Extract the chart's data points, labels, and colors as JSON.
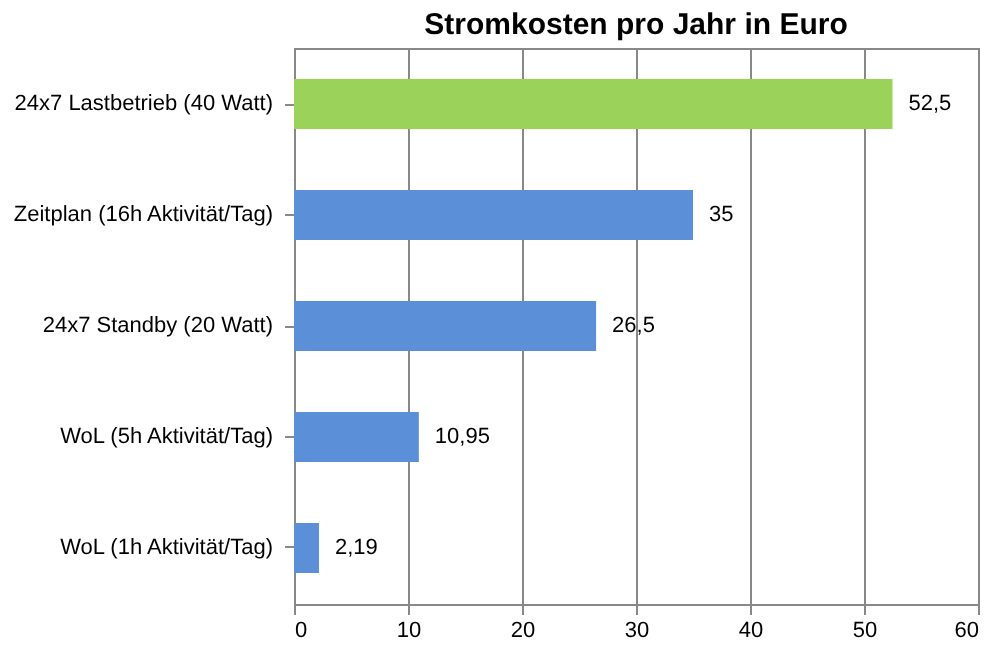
{
  "chart_data": {
    "type": "bar",
    "orientation": "horizontal",
    "title": "Stromkosten pro Jahr in Euro",
    "categories": [
      "24x7 Lastbetrieb (40 Watt)",
      "Zeitplan (16h Aktivität/Tag)",
      "24x7 Standby (20 Watt)",
      "WoL (5h Aktivität/Tag)",
      "WoL (1h Aktivität/Tag)"
    ],
    "values": [
      52.5,
      35,
      26.5,
      10.95,
      2.19
    ],
    "value_labels": [
      "52,5",
      "35",
      "26,5",
      "10,95",
      "2,19"
    ],
    "colors": [
      "#9bd35a",
      "#5b8fd8",
      "#5b8fd8",
      "#5b8fd8",
      "#5b8fd8"
    ],
    "xlim": [
      0,
      60
    ],
    "xticks": [
      0,
      10,
      20,
      30,
      40,
      50,
      60
    ],
    "grid": "x"
  }
}
